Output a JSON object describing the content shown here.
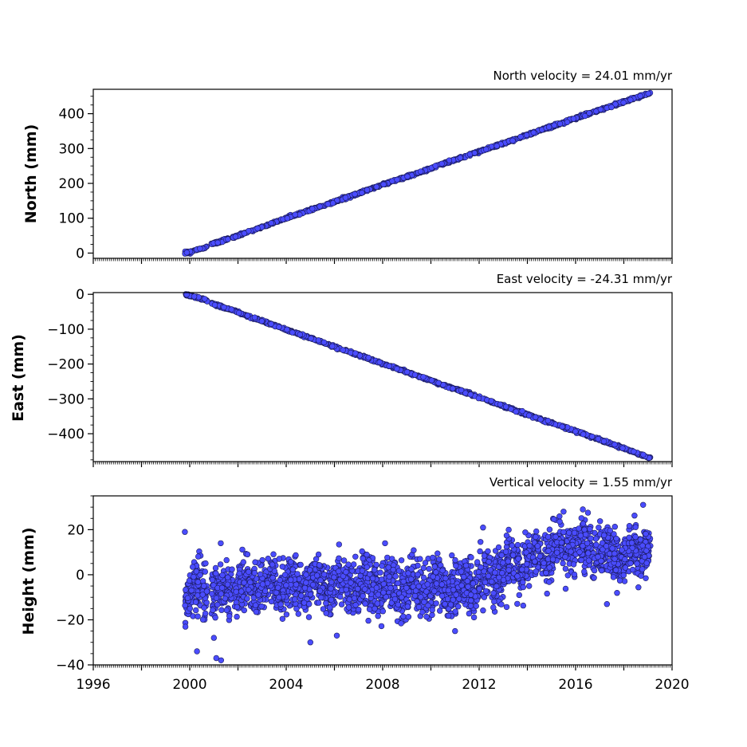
{
  "chart_data": [
    {
      "type": "scatter",
      "title": "North velocity = 24.01 mm/yr",
      "ylabel": "North (mm)",
      "xlim": [
        1996,
        2020
      ],
      "ylim": [
        -15,
        470
      ],
      "yticks": [
        0,
        100,
        200,
        300,
        400
      ],
      "show_xticklabels": false,
      "series": [
        {
          "kind": "linear",
          "anchors": [
            {
              "x": 1999.8,
              "y": 0
            },
            {
              "x": 2000.1,
              "y": 5
            },
            {
              "x": 2000.3,
              "y": 10
            },
            {
              "x": 2000.6,
              "y": 14
            },
            {
              "x": 2000.9,
              "y": 25
            },
            {
              "x": 2002,
              "y": 50
            },
            {
              "x": 2004,
              "y": 100
            },
            {
              "x": 2006,
              "y": 147
            },
            {
              "x": 2008,
              "y": 196
            },
            {
              "x": 2010,
              "y": 243
            },
            {
              "x": 2012,
              "y": 292
            },
            {
              "x": 2014,
              "y": 339
            },
            {
              "x": 2016,
              "y": 387
            },
            {
              "x": 2018,
              "y": 434
            },
            {
              "x": 2019.1,
              "y": 459
            }
          ],
          "color": "#4a4cff"
        }
      ]
    },
    {
      "type": "scatter",
      "title": "East velocity = -24.31 mm/yr",
      "ylabel": "East (mm)",
      "xlim": [
        1996,
        2020
      ],
      "ylim": [
        -480,
        5
      ],
      "yticks": [
        0,
        -100,
        -200,
        -300,
        -400
      ],
      "ytick_labels": [
        "0",
        "−100",
        "−200",
        "−300",
        "−400"
      ],
      "show_xticklabels": false,
      "series": [
        {
          "kind": "linear",
          "anchors": [
            {
              "x": 1999.8,
              "y": 0
            },
            {
              "x": 2000.3,
              "y": -10
            },
            {
              "x": 2000.6,
              "y": -14
            },
            {
              "x": 2000.9,
              "y": -25
            },
            {
              "x": 2002,
              "y": -52
            },
            {
              "x": 2004,
              "y": -101
            },
            {
              "x": 2006,
              "y": -150
            },
            {
              "x": 2008,
              "y": -199
            },
            {
              "x": 2010,
              "y": -247
            },
            {
              "x": 2012,
              "y": -296
            },
            {
              "x": 2014,
              "y": -345
            },
            {
              "x": 2016,
              "y": -393
            },
            {
              "x": 2018,
              "y": -442
            },
            {
              "x": 2019.1,
              "y": -470
            }
          ],
          "color": "#4a4cff"
        }
      ]
    },
    {
      "type": "scatter",
      "title": "Vertical velocity = 1.55 mm/yr",
      "ylabel": "Height (mm)",
      "xlabel": "",
      "xlim": [
        1996,
        2020
      ],
      "ylim": [
        -40,
        35
      ],
      "yticks": [
        -40,
        -20,
        0,
        20
      ],
      "ytick_labels": [
        "−40",
        "−20",
        "0",
        "20"
      ],
      "xticks": [
        1996,
        2000,
        2004,
        2008,
        2012,
        2016,
        2020
      ],
      "show_xticklabels": true,
      "series": [
        {
          "kind": "noisy",
          "anchors": [
            {
              "x": 1999.8,
              "y": -8
            },
            {
              "x": 2001,
              "y": -8
            },
            {
              "x": 2003,
              "y": -5
            },
            {
              "x": 2005,
              "y": -5
            },
            {
              "x": 2007,
              "y": -4
            },
            {
              "x": 2009,
              "y": -6
            },
            {
              "x": 2011,
              "y": -7
            },
            {
              "x": 2012,
              "y": -3
            },
            {
              "x": 2013,
              "y": 2
            },
            {
              "x": 2014,
              "y": 6
            },
            {
              "x": 2015,
              "y": 10
            },
            {
              "x": 2016,
              "y": 13
            },
            {
              "x": 2017,
              "y": 10
            },
            {
              "x": 2018,
              "y": 8
            },
            {
              "x": 2019.1,
              "y": 14
            }
          ],
          "spread": 7,
          "outliers": [
            {
              "x": 1999.8,
              "y": 19
            },
            {
              "x": 2000.3,
              "y": -34
            },
            {
              "x": 2001.1,
              "y": -37
            },
            {
              "x": 2001.3,
              "y": -38
            },
            {
              "x": 2001.0,
              "y": -28
            },
            {
              "x": 2005.0,
              "y": -30
            },
            {
              "x": 2006.1,
              "y": -27
            },
            {
              "x": 2008.1,
              "y": 14
            },
            {
              "x": 2011.0,
              "y": -25
            },
            {
              "x": 2015.5,
              "y": 28
            },
            {
              "x": 2016.3,
              "y": 29
            },
            {
              "x": 2018.8,
              "y": 31
            },
            {
              "x": 2017.3,
              "y": -13
            }
          ],
          "color": "#4a4cff"
        }
      ]
    }
  ]
}
